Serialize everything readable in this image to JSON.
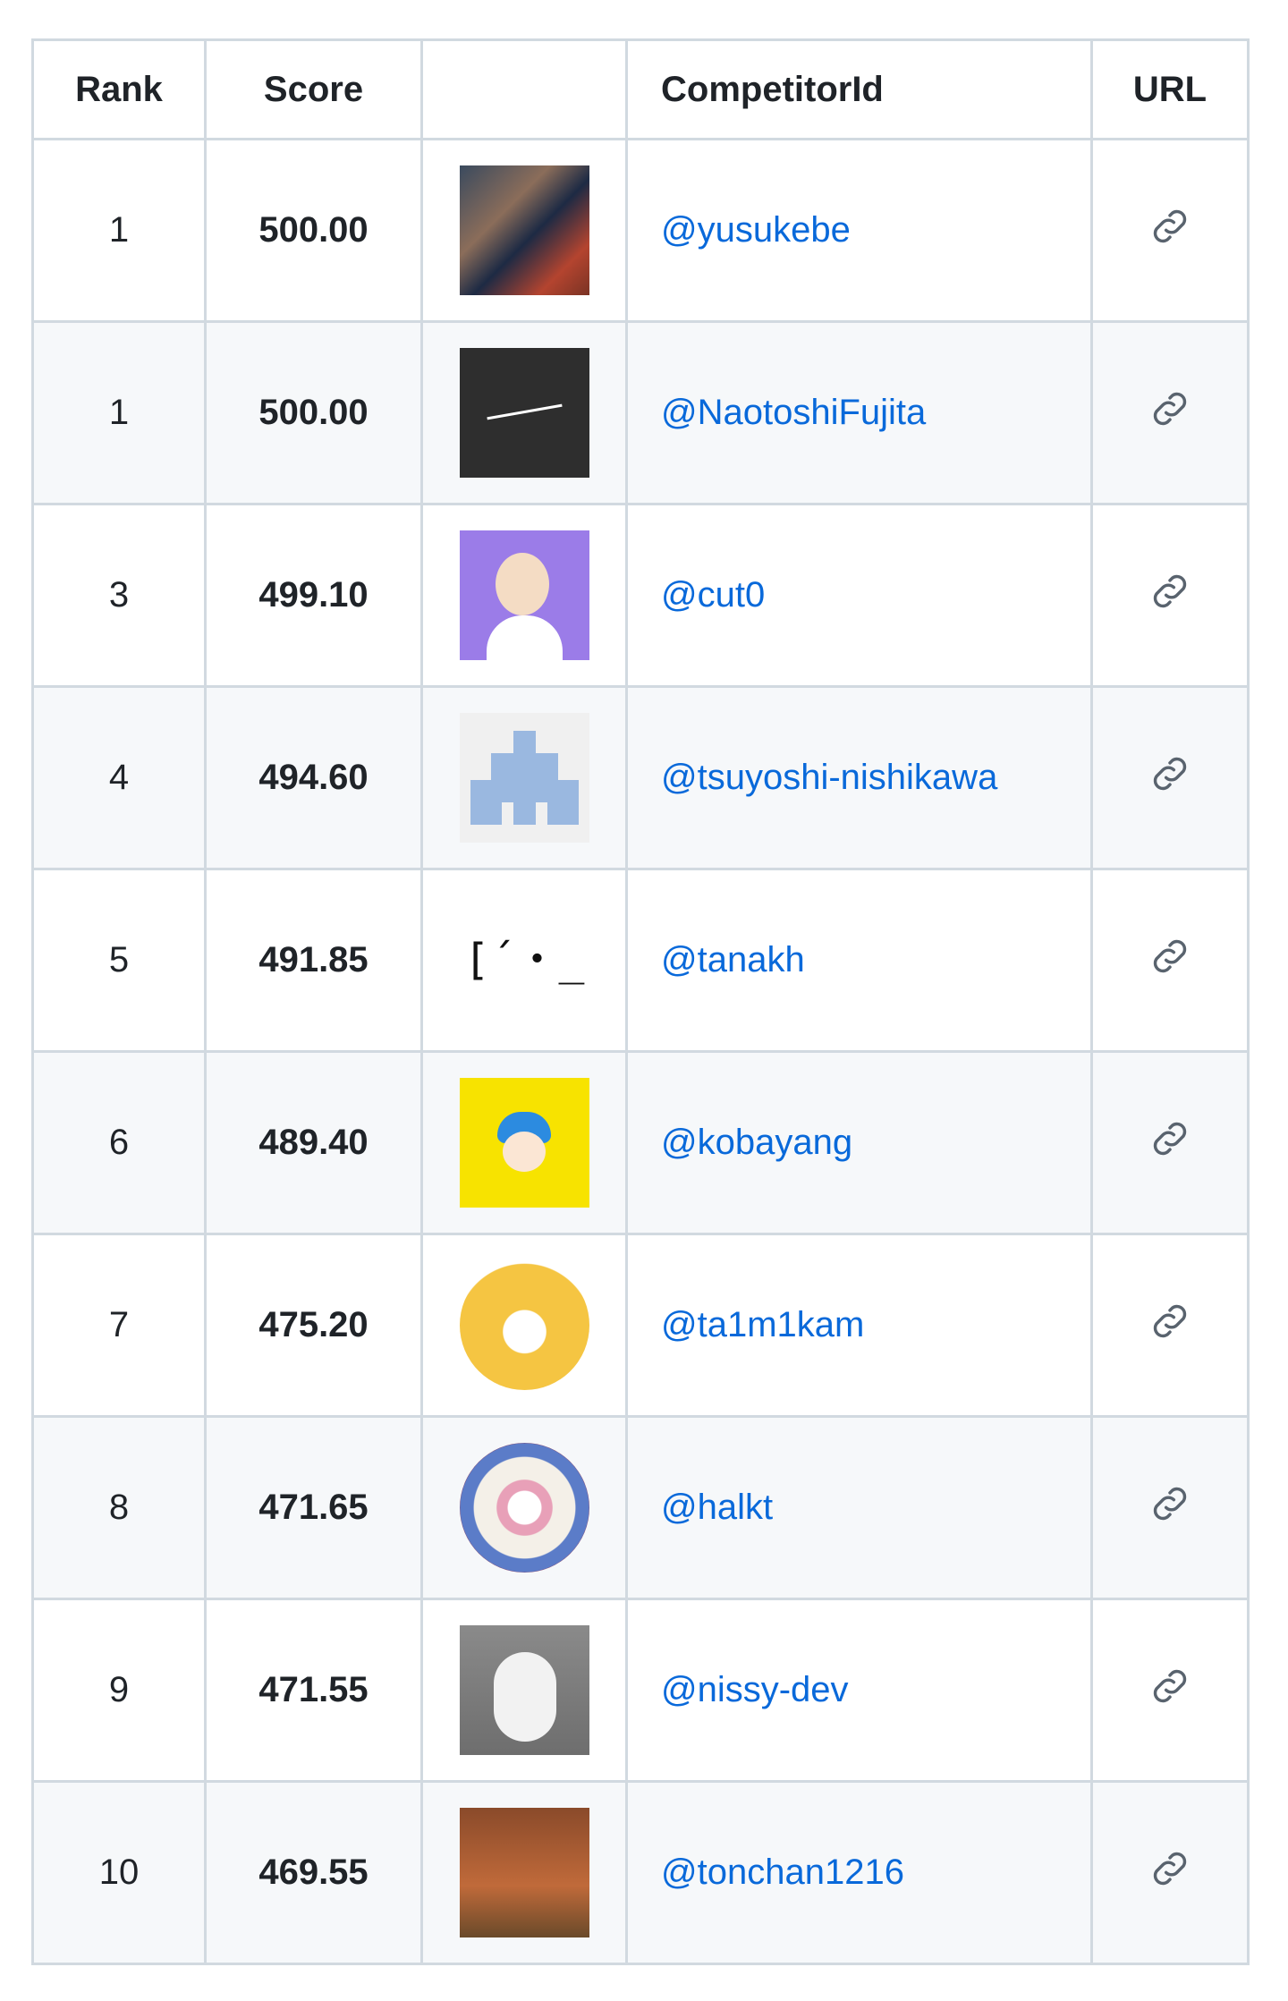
{
  "table": {
    "headers": {
      "rank": "Rank",
      "score": "Score",
      "avatar": "",
      "competitor_id": "CompetitorId",
      "url": "URL"
    },
    "rows": [
      {
        "rank": "1",
        "score": "500.00",
        "competitor_id": "@yusukebe",
        "avatar_icon": "photo-avatar",
        "url_icon": "link-icon"
      },
      {
        "rank": "1",
        "score": "500.00",
        "competitor_id": "@NaotoshiFujita",
        "avatar_icon": "signature-avatar",
        "url_icon": "link-icon"
      },
      {
        "rank": "3",
        "score": "499.10",
        "competitor_id": "@cut0",
        "avatar_icon": "illustration-avatar",
        "url_icon": "link-icon"
      },
      {
        "rank": "4",
        "score": "494.60",
        "competitor_id": "@tsuyoshi-nishikawa",
        "avatar_icon": "identicon-avatar",
        "url_icon": "link-icon"
      },
      {
        "rank": "5",
        "score": "491.85",
        "competitor_id": "@tanakh",
        "avatar_icon": "text-avatar",
        "avatar_text": "[´・_",
        "url_icon": "link-icon"
      },
      {
        "rank": "6",
        "score": "489.40",
        "competitor_id": "@kobayang",
        "avatar_icon": "illustration-avatar",
        "url_icon": "link-icon"
      },
      {
        "rank": "7",
        "score": "475.20",
        "competitor_id": "@ta1m1kam",
        "avatar_icon": "tiger-avatar",
        "url_icon": "link-icon"
      },
      {
        "rank": "8",
        "score": "471.65",
        "competitor_id": "@halkt",
        "avatar_icon": "mandala-avatar",
        "url_icon": "link-icon"
      },
      {
        "rank": "9",
        "score": "471.55",
        "competitor_id": "@nissy-dev",
        "avatar_icon": "plush-photo-avatar",
        "url_icon": "link-icon"
      },
      {
        "rank": "10",
        "score": "469.55",
        "competitor_id": "@tonchan1216",
        "avatar_icon": "bear-photo-avatar",
        "url_icon": "link-icon"
      }
    ]
  },
  "colors": {
    "link": "#0969da",
    "border": "#d1d9e0",
    "stripe": "#f6f8fa"
  }
}
